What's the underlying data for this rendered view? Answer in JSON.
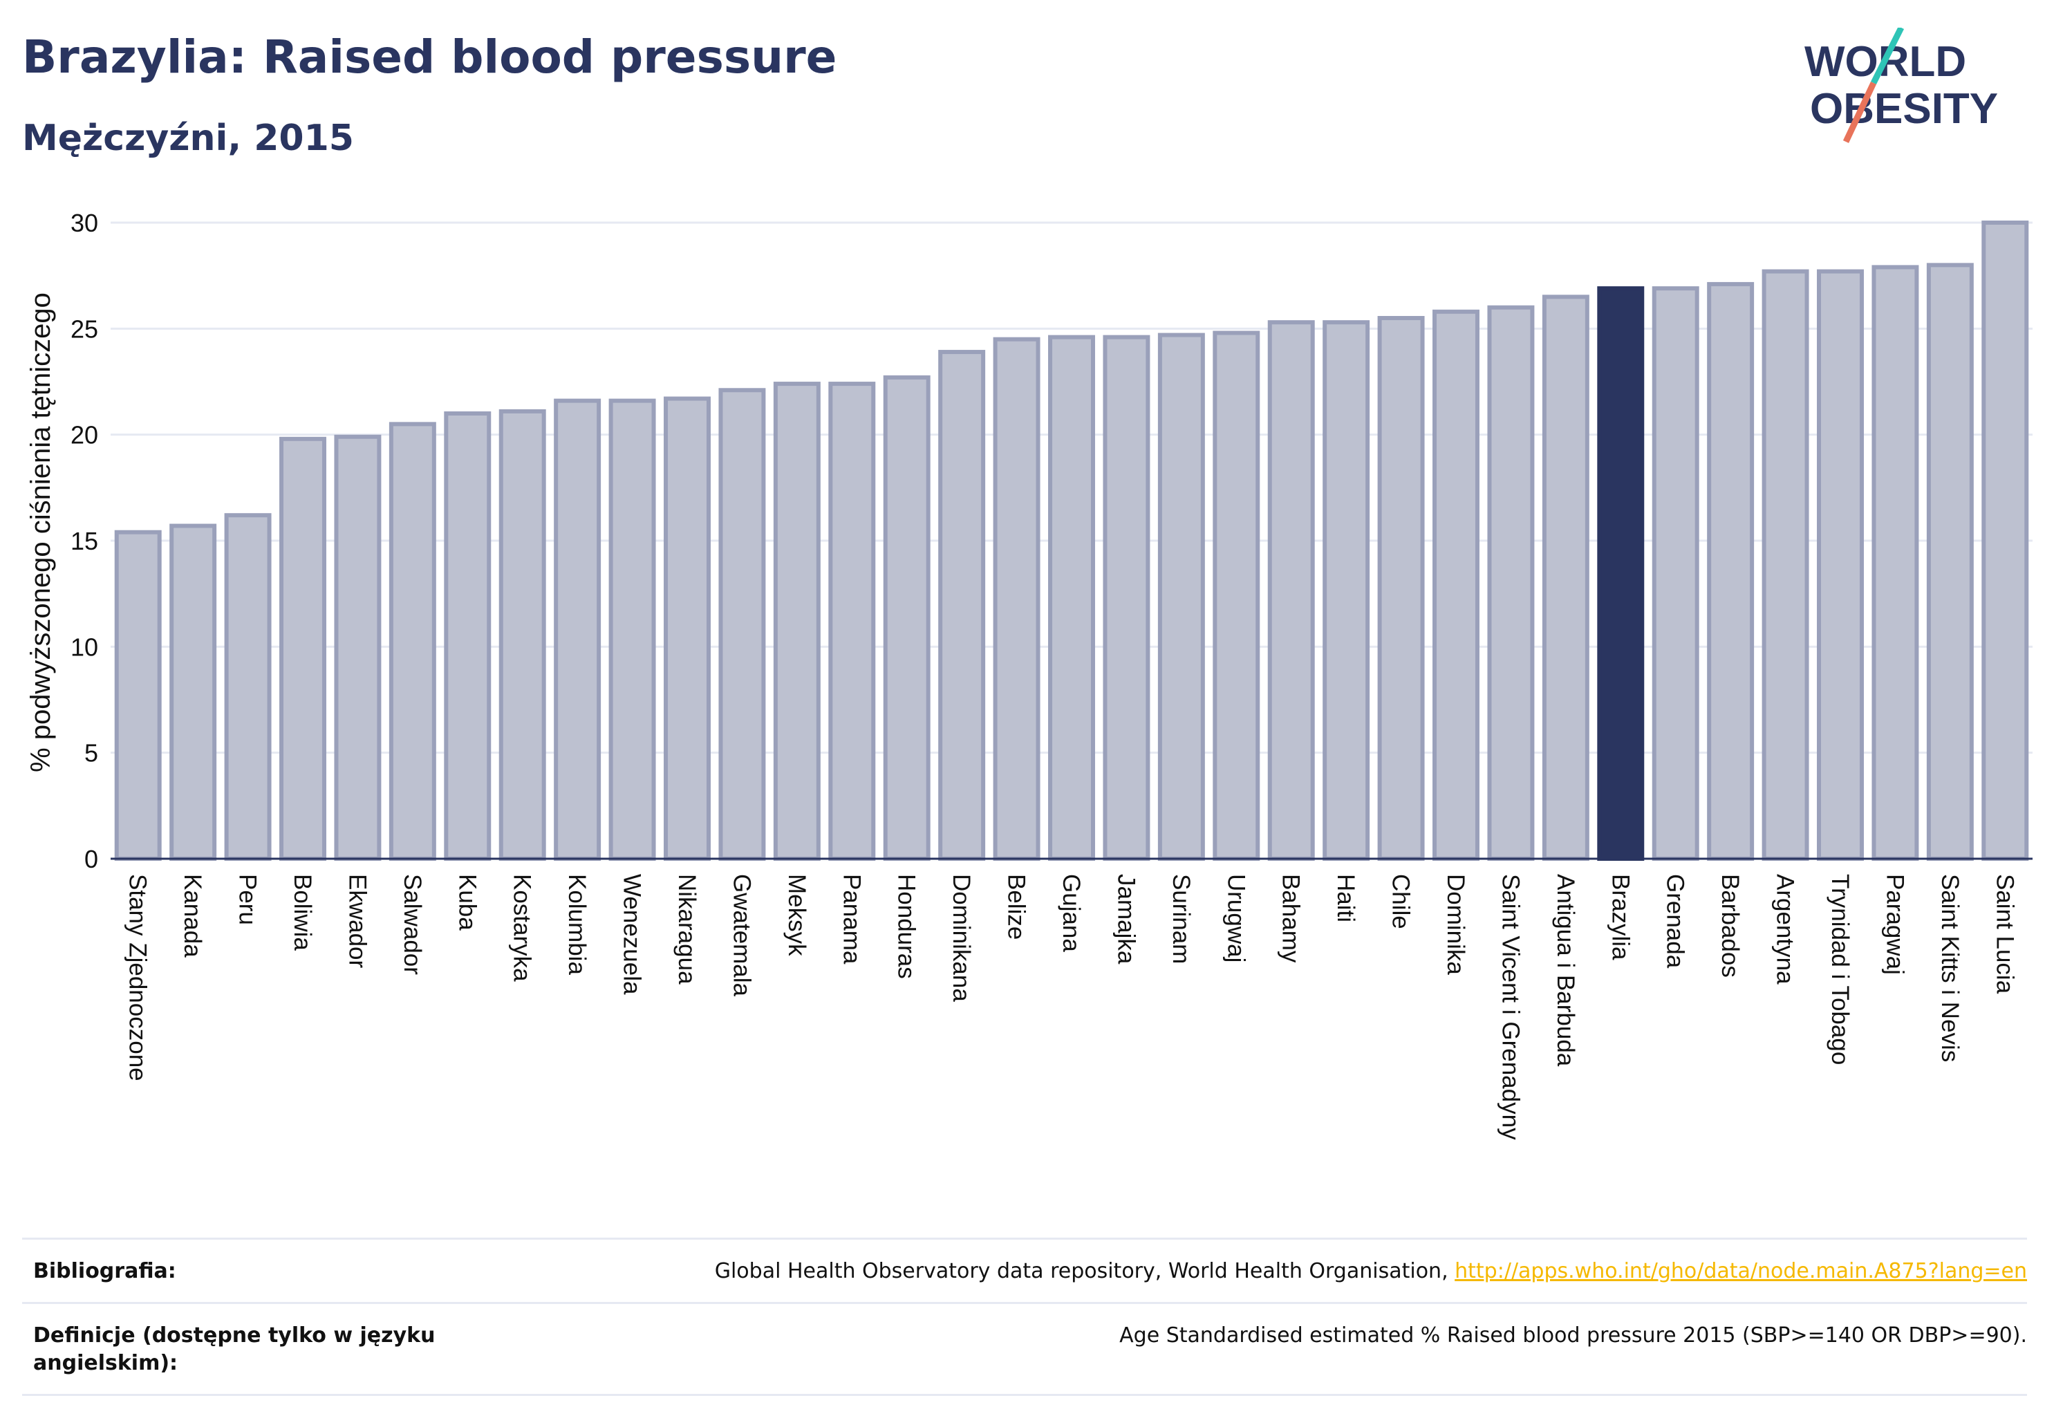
{
  "header": {
    "title": "Brazylia: Raised blood pressure",
    "subtitle": "Mężczyźni, 2015"
  },
  "logo": {
    "line1": "WORLD",
    "line2": "OBESITY",
    "colors": {
      "text": "#2a3560",
      "slash_top": "#2ec4b6",
      "slash_bottom": "#e8735a"
    }
  },
  "chart_data": {
    "type": "bar",
    "title": "",
    "xlabel": "",
    "ylabel": "% podwyższonego ciśnienia tętniczego",
    "ylim": [
      0,
      30
    ],
    "yticks": [
      0,
      5,
      10,
      15,
      20,
      25,
      30
    ],
    "grid": true,
    "highlight": "Brazylia",
    "colors": {
      "bar": "#bdc1d0",
      "bar_border": "#9aa0ba",
      "highlight": "#2a3560",
      "grid": "#e6e9f2",
      "axis": "#2a3560"
    },
    "categories": [
      "Stany Zjednoczone",
      "Kanada",
      "Peru",
      "Boliwia",
      "Ekwador",
      "Salwador",
      "Kuba",
      "Kostaryka",
      "Kolumbia",
      "Wenezuela",
      "Nikaragua",
      "Gwatemala",
      "Meksyk",
      "Panama",
      "Honduras",
      "Dominikana",
      "Belize",
      "Gujana",
      "Jamajka",
      "Surinam",
      "Urugwaj",
      "Bahamy",
      "Haiti",
      "Chile",
      "Dominika",
      "Saint Vicent i Grenadyny",
      "Antigua i Barbuda",
      "Brazylia",
      "Grenada",
      "Barbados",
      "Argentyna",
      "Trynidad i Tobago",
      "Paragwaj",
      "Saint Kitts i Nevis",
      "Saint Lucia"
    ],
    "values": [
      15.4,
      15.7,
      16.2,
      19.8,
      19.9,
      20.5,
      21.0,
      21.1,
      21.6,
      21.6,
      21.7,
      22.1,
      22.4,
      22.4,
      22.7,
      23.9,
      24.5,
      24.6,
      24.6,
      24.7,
      24.8,
      25.3,
      25.3,
      25.5,
      25.8,
      26.0,
      26.5,
      26.9,
      26.9,
      27.1,
      27.7,
      27.7,
      27.9,
      28.0,
      30.0
    ]
  },
  "footer": {
    "bibliography_label": "Bibliografia:",
    "bibliography_text": "Global Health Observatory data repository, World Health Organisation, ",
    "bibliography_link": "http://apps.who.int/gho/data/node.main.A875?lang=en",
    "definition_label": "Definicje (dostępne tylko w języku angielskim):",
    "definition_text": "Age Standardised estimated % Raised blood pressure 2015 (SBP>=140 OR DBP>=90)."
  }
}
